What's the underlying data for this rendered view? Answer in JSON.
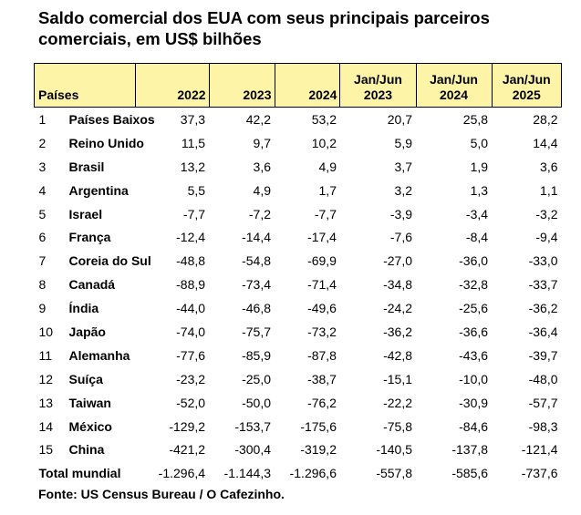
{
  "title": {
    "line1": "Saldo comercial dos EUA com seus principais parceiros",
    "line2": "comerciais, em US$ bilhões"
  },
  "table": {
    "headers": {
      "country": "Países",
      "y2022": "2022",
      "y2023": "2023",
      "y2024": "2024",
      "h2023": [
        "Jan/Jun",
        "2023"
      ],
      "h2024": [
        "Jan/Jun",
        "2024"
      ],
      "h2025": [
        "Jan/Jun",
        "2025"
      ]
    },
    "rows": [
      {
        "rank": "1",
        "country": "Países Baixos",
        "values": [
          "37,3",
          "42,2",
          "53,2",
          "20,7",
          "25,8",
          "28,2"
        ]
      },
      {
        "rank": "2",
        "country": "Reino Unido",
        "values": [
          "11,5",
          "9,7",
          "10,2",
          "5,9",
          "5,0",
          "14,4"
        ]
      },
      {
        "rank": "3",
        "country": "Brasil",
        "values": [
          "13,2",
          "3,6",
          "4,9",
          "3,7",
          "1,9",
          "3,6"
        ]
      },
      {
        "rank": "4",
        "country": "Argentina",
        "values": [
          "5,5",
          "4,9",
          "1,7",
          "3,2",
          "1,3",
          "1,1"
        ]
      },
      {
        "rank": "5",
        "country": "Israel",
        "values": [
          "-7,7",
          "-7,2",
          "-7,7",
          "-3,9",
          "-3,4",
          "-3,2"
        ]
      },
      {
        "rank": "6",
        "country": "França",
        "values": [
          "-12,4",
          "-14,4",
          "-17,4",
          "-7,6",
          "-8,4",
          "-9,4"
        ]
      },
      {
        "rank": "7",
        "country": "Coreia do Sul",
        "values": [
          "-48,8",
          "-54,8",
          "-69,9",
          "-27,0",
          "-36,0",
          "-33,0"
        ]
      },
      {
        "rank": "8",
        "country": "Canadá",
        "values": [
          "-88,9",
          "-73,4",
          "-71,4",
          "-34,8",
          "-32,8",
          "-33,7"
        ]
      },
      {
        "rank": "9",
        "country": "Índia",
        "values": [
          "-44,0",
          "-46,8",
          "-49,6",
          "-24,2",
          "-25,6",
          "-36,2"
        ]
      },
      {
        "rank": "10",
        "country": "Japão",
        "values": [
          "-74,0",
          "-75,7",
          "-73,2",
          "-36,2",
          "-36,6",
          "-36,4"
        ]
      },
      {
        "rank": "11",
        "country": "Alemanha",
        "values": [
          "-77,6",
          "-85,9",
          "-87,8",
          "-42,8",
          "-43,6",
          "-39,7"
        ]
      },
      {
        "rank": "12",
        "country": "Suíça",
        "values": [
          "-23,2",
          "-25,0",
          "-38,7",
          "-15,1",
          "-10,0",
          "-48,0"
        ]
      },
      {
        "rank": "13",
        "country": "Taiwan",
        "values": [
          "-52,0",
          "-50,0",
          "-76,2",
          "-22,2",
          "-30,9",
          "-57,7"
        ]
      },
      {
        "rank": "14",
        "country": "México",
        "values": [
          "-129,2",
          "-153,7",
          "-175,6",
          "-75,8",
          "-84,6",
          "-98,3"
        ]
      },
      {
        "rank": "15",
        "country": "China",
        "values": [
          "-421,2",
          "-300,4",
          "-319,2",
          "-140,5",
          "-137,8",
          "-121,4"
        ]
      }
    ],
    "total": {
      "label": "Total mundial",
      "values": [
        "-1.296,4",
        "-1.144,3",
        "-1.296,6",
        "-557,8",
        "-585,6",
        "-737,6"
      ]
    }
  },
  "source": "Fonte: US Census Bureau / O Cafezinho.",
  "colors": {
    "header_background": "#fdf4a8",
    "border": "#000000",
    "text": "#000000"
  }
}
